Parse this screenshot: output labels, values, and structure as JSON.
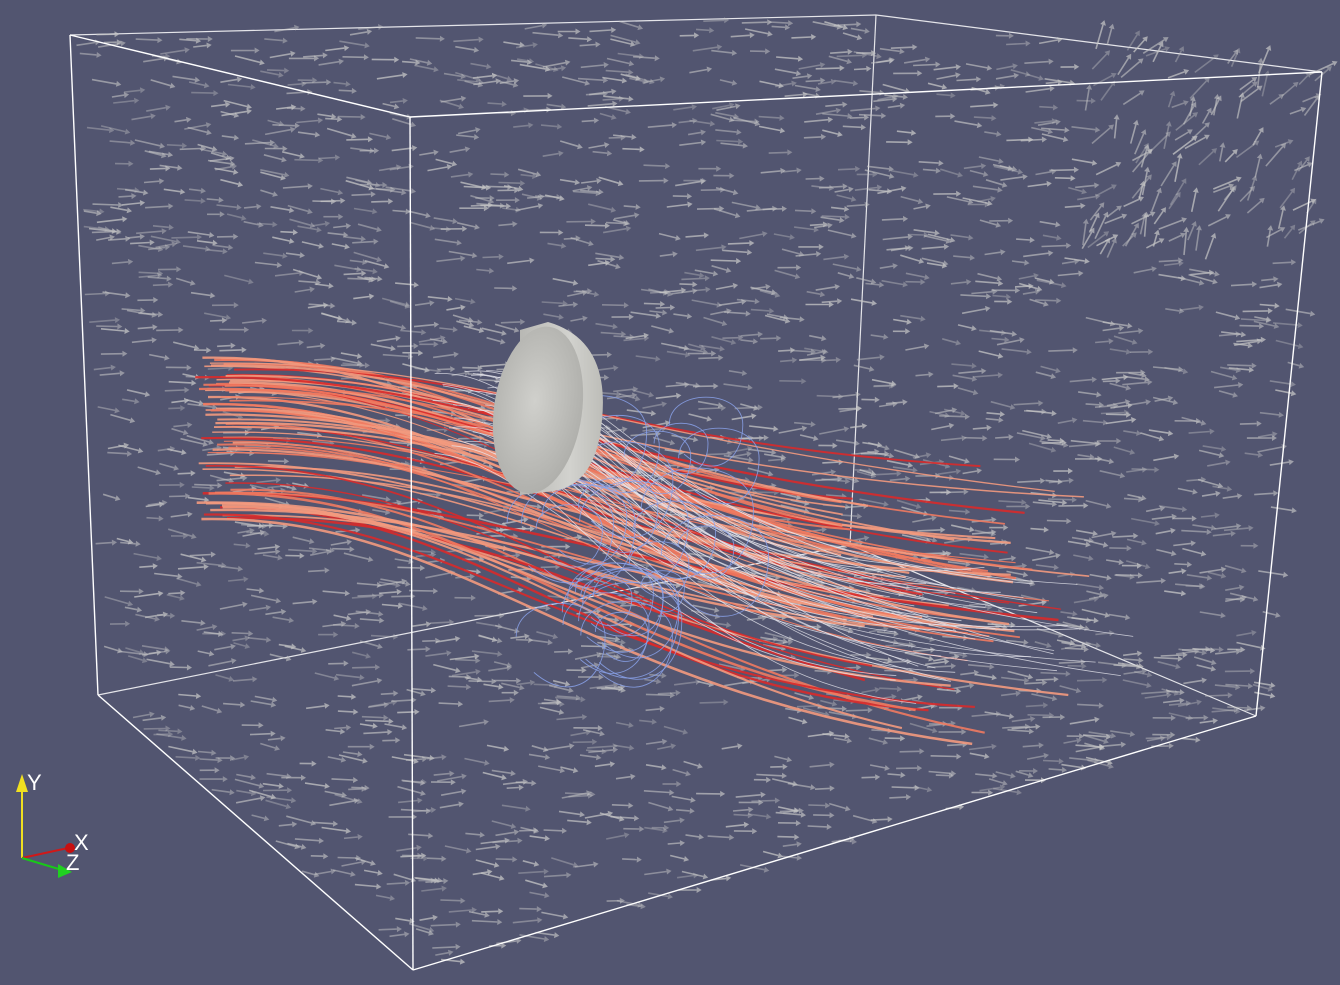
{
  "scene": {
    "background_color": "#525570",
    "bounding_box_color": "#ffffff",
    "glyph_color": "#c8c8c8",
    "cylinder_color": "#c4c4c0",
    "streamline_colors": {
      "warm_light": "#f39a7e",
      "warm_mid": "#f07a60",
      "warm_dark": "#d82a2a",
      "neutral": "#e6e6ee",
      "cool": "#8aa2ea"
    }
  },
  "orientation_axes": {
    "y_label": "Y",
    "x_label": "X",
    "z_label": "Z",
    "y_color": "#f0e020",
    "x_color": "#d01818",
    "z_color": "#18c818"
  }
}
